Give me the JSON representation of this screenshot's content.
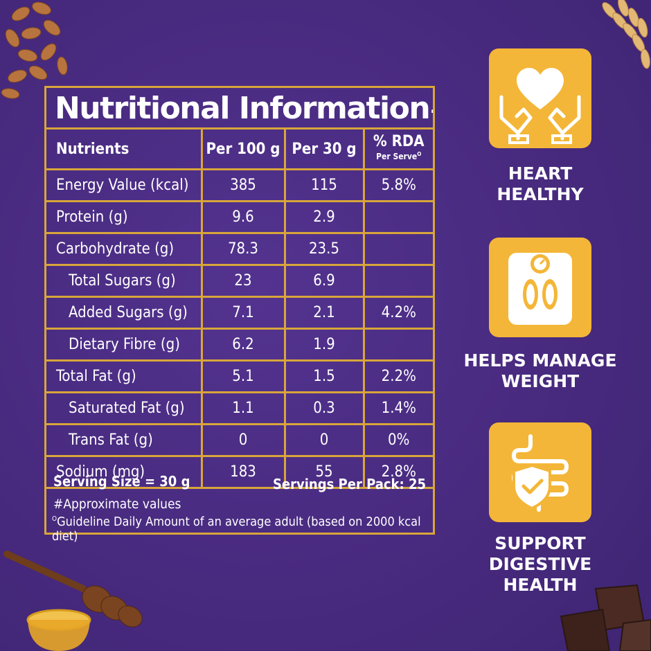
{
  "panel": {
    "title": "Nutritional Information#",
    "headers": {
      "nutrients": "Nutrients",
      "per100": "Per 100 g",
      "per30": "Per 30 g",
      "rda": "% RDA",
      "rda_sub": "Per Serve",
      "rda_mark": "O"
    },
    "rows": [
      {
        "name": "Energy Value (kcal)",
        "per100": "385",
        "per30": "115",
        "rda": "5.8%"
      },
      {
        "name": "Protein (g)",
        "per100": "9.6",
        "per30": "2.9",
        "rda": ""
      },
      {
        "name": "Carbohydrate (g)",
        "per100": "78.3",
        "per30": "23.5",
        "rda": ""
      },
      {
        "name": "Total Sugars (g)",
        "per100": "23",
        "per30": "6.9",
        "rda": ""
      },
      {
        "name": "Added Sugars (g)",
        "per100": "7.1",
        "per30": "2.1",
        "rda": "4.2%"
      },
      {
        "name": "Dietary Fibre (g)",
        "per100": "6.2",
        "per30": "1.9",
        "rda": ""
      },
      {
        "name": "Total Fat (g)",
        "per100": "5.1",
        "per30": "1.5",
        "rda": "2.2%"
      },
      {
        "name": "Saturated Fat (g)",
        "per100": "1.1",
        "per30": "0.3",
        "rda": "1.4%"
      },
      {
        "name": "Trans Fat (g)",
        "per100": "0",
        "per30": "0",
        "rda": "0%"
      },
      {
        "name": "Sodium (mg)",
        "per100": "183",
        "per30": "55",
        "rda": "2.8%"
      }
    ],
    "serving_size": "Serving Size = 30 g",
    "servings_per_pack": "Servings Per Pack: 25",
    "approx_note": "#Approximate values",
    "gda_mark": "O",
    "gda_note": "Guideline Daily Amount of an average adult (based on 2000 kcal diet)"
  },
  "badges": [
    {
      "line1": "HEART",
      "line2": "HEALTHY",
      "icon": "heart-hands-icon"
    },
    {
      "line1": "HELPS MANAGE",
      "line2": "WEIGHT",
      "icon": "weighing-scale-icon"
    },
    {
      "line1": "SUPPORT",
      "line2": "DIGESTIVE HEALTH",
      "icon": "digestive-shield-icon"
    }
  ],
  "colors": {
    "background": "#4a2c82",
    "gold_border": "#d8a63a",
    "badge_yellow": "#f4b638",
    "text": "#ffffff"
  }
}
